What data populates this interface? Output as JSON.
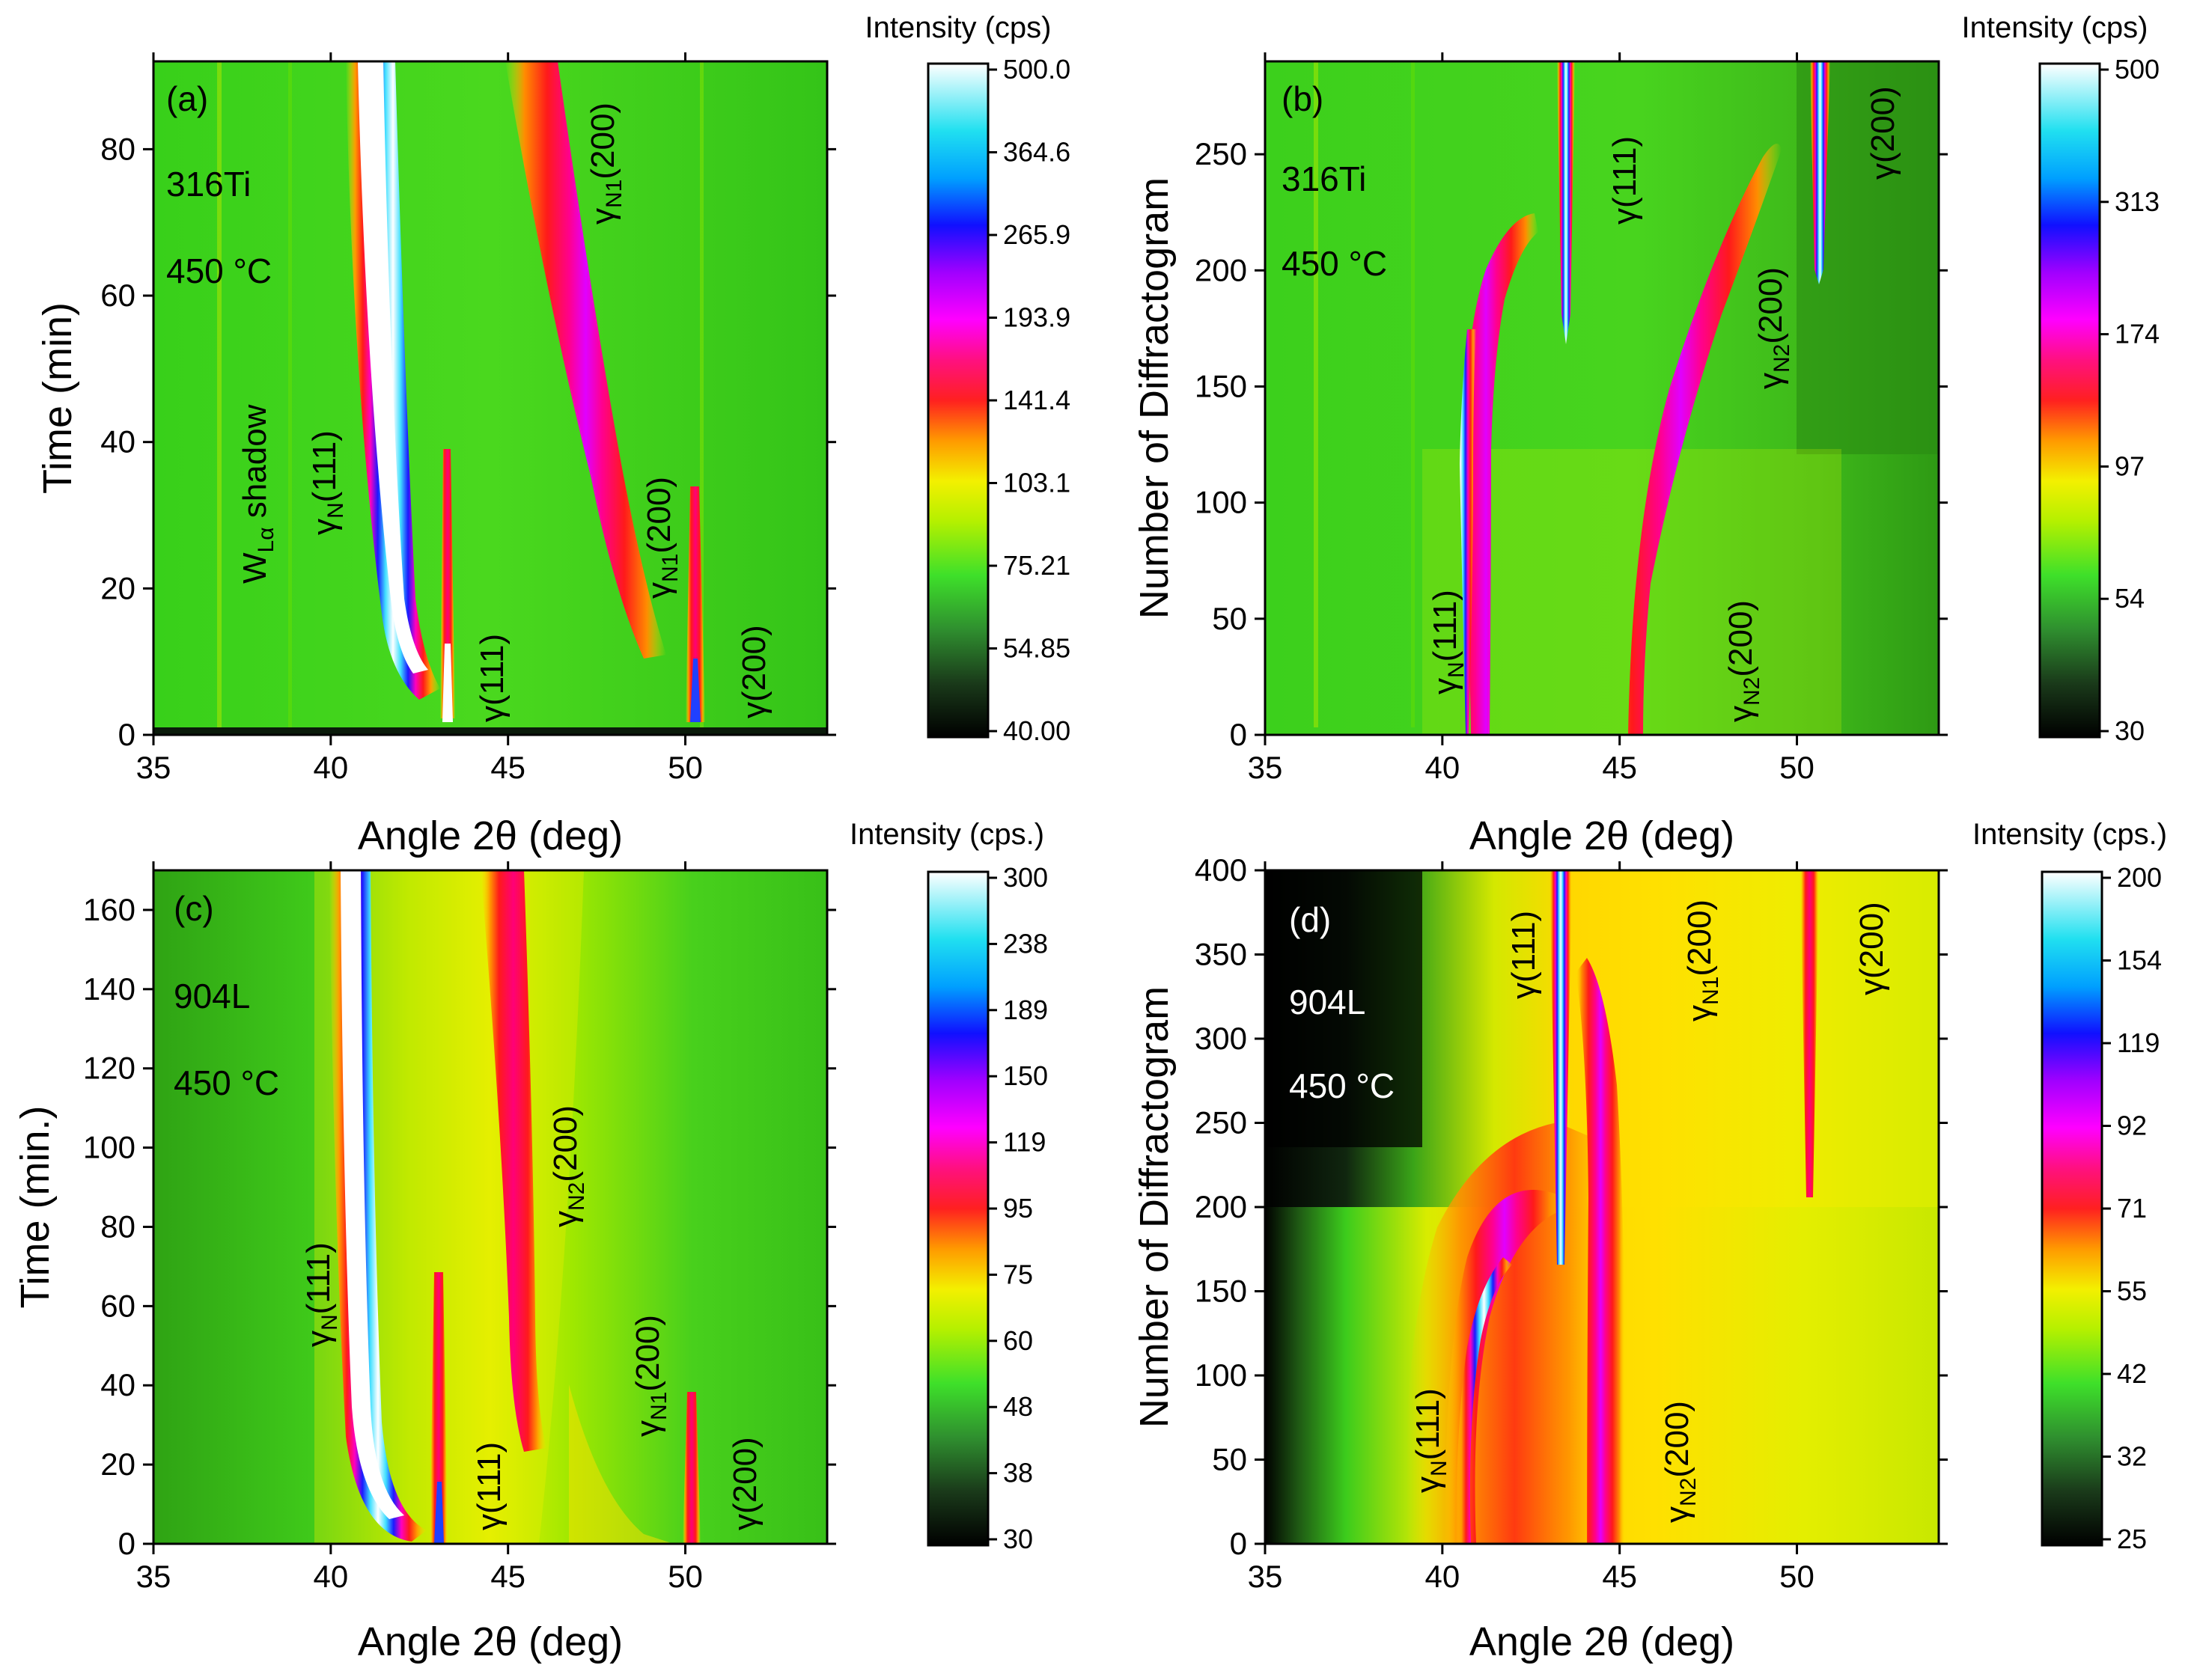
{
  "chart_data": [
    {
      "type": "heatmap",
      "panel_label": "(a)",
      "material": "316Ti",
      "temperature": "450 °C",
      "xlabel": "Angle 2θ (deg)",
      "ylabel": "Time (min)",
      "xlim": [
        35,
        54
      ],
      "ylim": [
        0,
        92
      ],
      "xticks": [
        "35",
        "40",
        "45",
        "50"
      ],
      "yticks": [
        "0",
        "20",
        "40",
        "60",
        "80"
      ],
      "colorbar_title": "Intensity (cps)",
      "colorbar_ticks": [
        "500.0",
        "364.6",
        "265.9",
        "193.9",
        "141.4",
        "103.1",
        "75.21",
        "54.85",
        "40.00"
      ],
      "annotations": [
        {
          "text": "WLα shadow",
          "x": 37.5,
          "y": 30
        },
        {
          "text": "γN(111)",
          "x": 39.8,
          "y": 40
        },
        {
          "text": "γ(111)",
          "x": 44.2,
          "y": 8
        },
        {
          "text": "γN1(200)",
          "x": 46.8,
          "y": 82
        },
        {
          "text": "γN1(200)",
          "x": 48.6,
          "y": 32
        },
        {
          "text": "γ(200)",
          "x": 51.5,
          "y": 8
        }
      ]
    },
    {
      "type": "heatmap",
      "panel_label": "(b)",
      "material": "316Ti",
      "temperature": "450 °C",
      "xlabel": "Angle 2θ (deg)",
      "ylabel": "Number of Diffractogram",
      "xlim": [
        35,
        54
      ],
      "ylim": [
        0,
        290
      ],
      "xticks": [
        "35",
        "40",
        "45",
        "50"
      ],
      "yticks": [
        "0",
        "50",
        "100",
        "150",
        "200",
        "250"
      ],
      "colorbar_title": "Intensity (cps)",
      "colorbar_ticks": [
        "500",
        "313",
        "174",
        "97",
        "54",
        "30"
      ],
      "annotations": [
        {
          "text": "γN(111)",
          "x": 40.2,
          "y": 40
        },
        {
          "text": "γ(111)",
          "x": 44.7,
          "y": 255
        },
        {
          "text": "γN2(200)",
          "x": 49.3,
          "y": 180
        },
        {
          "text": "γN2(200)",
          "x": 48.1,
          "y": 50
        },
        {
          "text": "γ(200)",
          "x": 52.5,
          "y": 255
        }
      ]
    },
    {
      "type": "heatmap",
      "panel_label": "(c)",
      "material": "904L",
      "temperature": "450 °C",
      "xlabel": "Angle 2θ (deg)",
      "ylabel": "Time (min.)",
      "xlim": [
        35,
        54
      ],
      "ylim": [
        0,
        170
      ],
      "xticks": [
        "35",
        "40",
        "45",
        "50"
      ],
      "yticks": [
        "0",
        "20",
        "40",
        "60",
        "80",
        "100",
        "120",
        "140",
        "160"
      ],
      "colorbar_title": "Intensity (cps.)",
      "colorbar_ticks": [
        "300",
        "238",
        "189",
        "150",
        "119",
        "95",
        "75",
        "60",
        "48",
        "38",
        "30"
      ],
      "annotations": [
        {
          "text": "γN(111)",
          "x": 39.8,
          "y": 60
        },
        {
          "text": "γ(111)",
          "x": 44.2,
          "y": 15
        },
        {
          "text": "γN2(200)",
          "x": 46.8,
          "y": 100
        },
        {
          "text": "γN1(200)",
          "x": 48.6,
          "y": 35
        },
        {
          "text": "γ(200)",
          "x": 51.5,
          "y": 15
        }
      ]
    },
    {
      "type": "heatmap",
      "panel_label": "(d)",
      "material": "904L",
      "temperature": "450 °C",
      "xlabel": "Angle 2θ (deg)",
      "ylabel": "Number of Diffractogram",
      "xlim": [
        35,
        54
      ],
      "ylim": [
        0,
        400
      ],
      "xticks": [
        "35",
        "40",
        "45",
        "50"
      ],
      "yticks": [
        "0",
        "50",
        "100",
        "150",
        "200",
        "250",
        "300",
        "350",
        "400"
      ],
      "colorbar_title": "Intensity (cps.)",
      "colorbar_ticks": [
        "200",
        "154",
        "119",
        "92",
        "71",
        "55",
        "42",
        "32",
        "25"
      ],
      "annotations": [
        {
          "text": "γN(111)",
          "x": 39.7,
          "y": 60
        },
        {
          "text": "γ(111)",
          "x": 42.6,
          "y": 360
        },
        {
          "text": "γN1(200)",
          "x": 47.0,
          "y": 350
        },
        {
          "text": "γN2(200)",
          "x": 46.7,
          "y": 70
        },
        {
          "text": "γ(200)",
          "x": 52.1,
          "y": 350
        }
      ]
    }
  ]
}
